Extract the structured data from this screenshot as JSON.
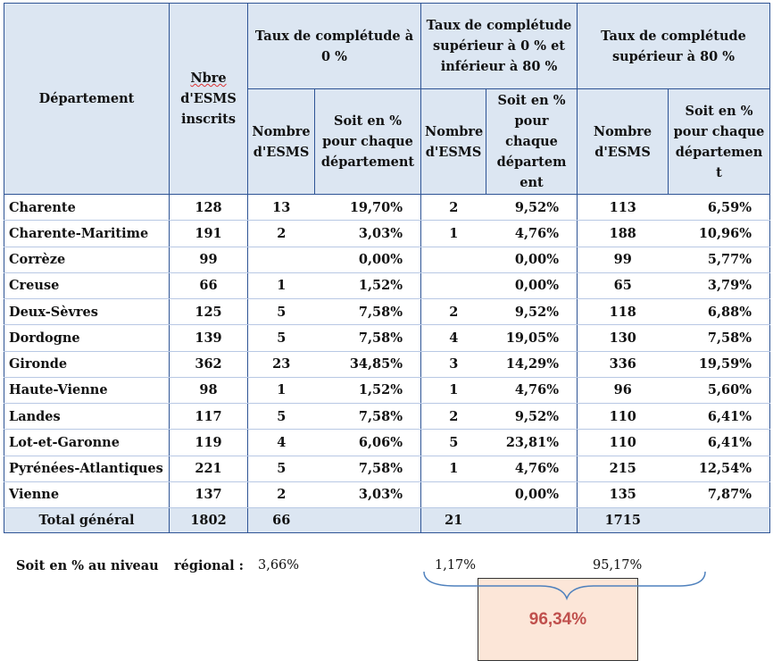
{
  "table": {
    "header": {
      "departement": "Département",
      "nbre_line1": "Nbre",
      "nbre_line2": "d'ESMS",
      "nbre_line3": "inscrits",
      "group0": "Taux de complétude à 0 %",
      "group1": "Taux de complétude supérieur à 0 % et inférieur à 80 %",
      "group2": "Taux de complétude supérieur  à 80 %",
      "nombre_esms": "Nombre d'ESMS",
      "soit_g0": "Soit en % pour chaque département",
      "soit_g1": "Soit en % pour chaque départem ent",
      "soit_g2": "Soit en % pour chaque départemen t"
    },
    "rows": [
      {
        "dep": "Charente",
        "nb": "128",
        "n0": "13",
        "p0": "19,70%",
        "n1": "2",
        "p1": "9,52%",
        "n2": "113",
        "p2": "6,59%"
      },
      {
        "dep": "Charente-Maritime",
        "nb": "191",
        "n0": "2",
        "p0": "3,03%",
        "n1": "1",
        "p1": "4,76%",
        "n2": "188",
        "p2": "10,96%"
      },
      {
        "dep": "Corrèze",
        "nb": "99",
        "n0": "",
        "p0": "0,00%",
        "n1": "",
        "p1": "0,00%",
        "n2": "99",
        "p2": "5,77%"
      },
      {
        "dep": "Creuse",
        "nb": "66",
        "n0": "1",
        "p0": "1,52%",
        "n1": "",
        "p1": "0,00%",
        "n2": "65",
        "p2": "3,79%"
      },
      {
        "dep": "Deux-Sèvres",
        "nb": "125",
        "n0": "5",
        "p0": "7,58%",
        "n1": "2",
        "p1": "9,52%",
        "n2": "118",
        "p2": "6,88%"
      },
      {
        "dep": "Dordogne",
        "nb": "139",
        "n0": "5",
        "p0": "7,58%",
        "n1": "4",
        "p1": "19,05%",
        "n2": "130",
        "p2": "7,58%"
      },
      {
        "dep": "Gironde",
        "nb": "362",
        "n0": "23",
        "p0": "34,85%",
        "n1": "3",
        "p1": "14,29%",
        "n2": "336",
        "p2": "19,59%"
      },
      {
        "dep": "Haute-Vienne",
        "nb": "98",
        "n0": "1",
        "p0": "1,52%",
        "n1": "1",
        "p1": "4,76%",
        "n2": "96",
        "p2": "5,60%"
      },
      {
        "dep": "Landes",
        "nb": "117",
        "n0": "5",
        "p0": "7,58%",
        "n1": "2",
        "p1": "9,52%",
        "n2": "110",
        "p2": "6,41%"
      },
      {
        "dep": "Lot-et-Garonne",
        "nb": "119",
        "n0": "4",
        "p0": "6,06%",
        "n1": "5",
        "p1": "23,81%",
        "n2": "110",
        "p2": "6,41%"
      },
      {
        "dep": "Pyrénées-Atlantiques",
        "nb": "221",
        "n0": "5",
        "p0": "7,58%",
        "n1": "1",
        "p1": "4,76%",
        "n2": "215",
        "p2": "12,54%"
      },
      {
        "dep": "Vienne",
        "nb": "137",
        "n0": "2",
        "p0": "3,03%",
        "n1": "",
        "p1": "0,00%",
        "n2": "135",
        "p2": "7,87%"
      }
    ],
    "total": {
      "label": "Total général",
      "nb": "1802",
      "n0": "66",
      "n1": "21",
      "n2": "1715"
    }
  },
  "footer": {
    "label_a": "Soit en % au niveau",
    "label_b": "régional :",
    "pct0": "3,66%",
    "pct1": "1,17%",
    "pct2": "95,17%",
    "combined": "96,34%"
  },
  "colors": {
    "header_bg": "#dce6f2",
    "border": "#2e5495",
    "box_bg": "#fce6d8",
    "combined_text": "#c0504d",
    "brace": "#4f81bd"
  }
}
